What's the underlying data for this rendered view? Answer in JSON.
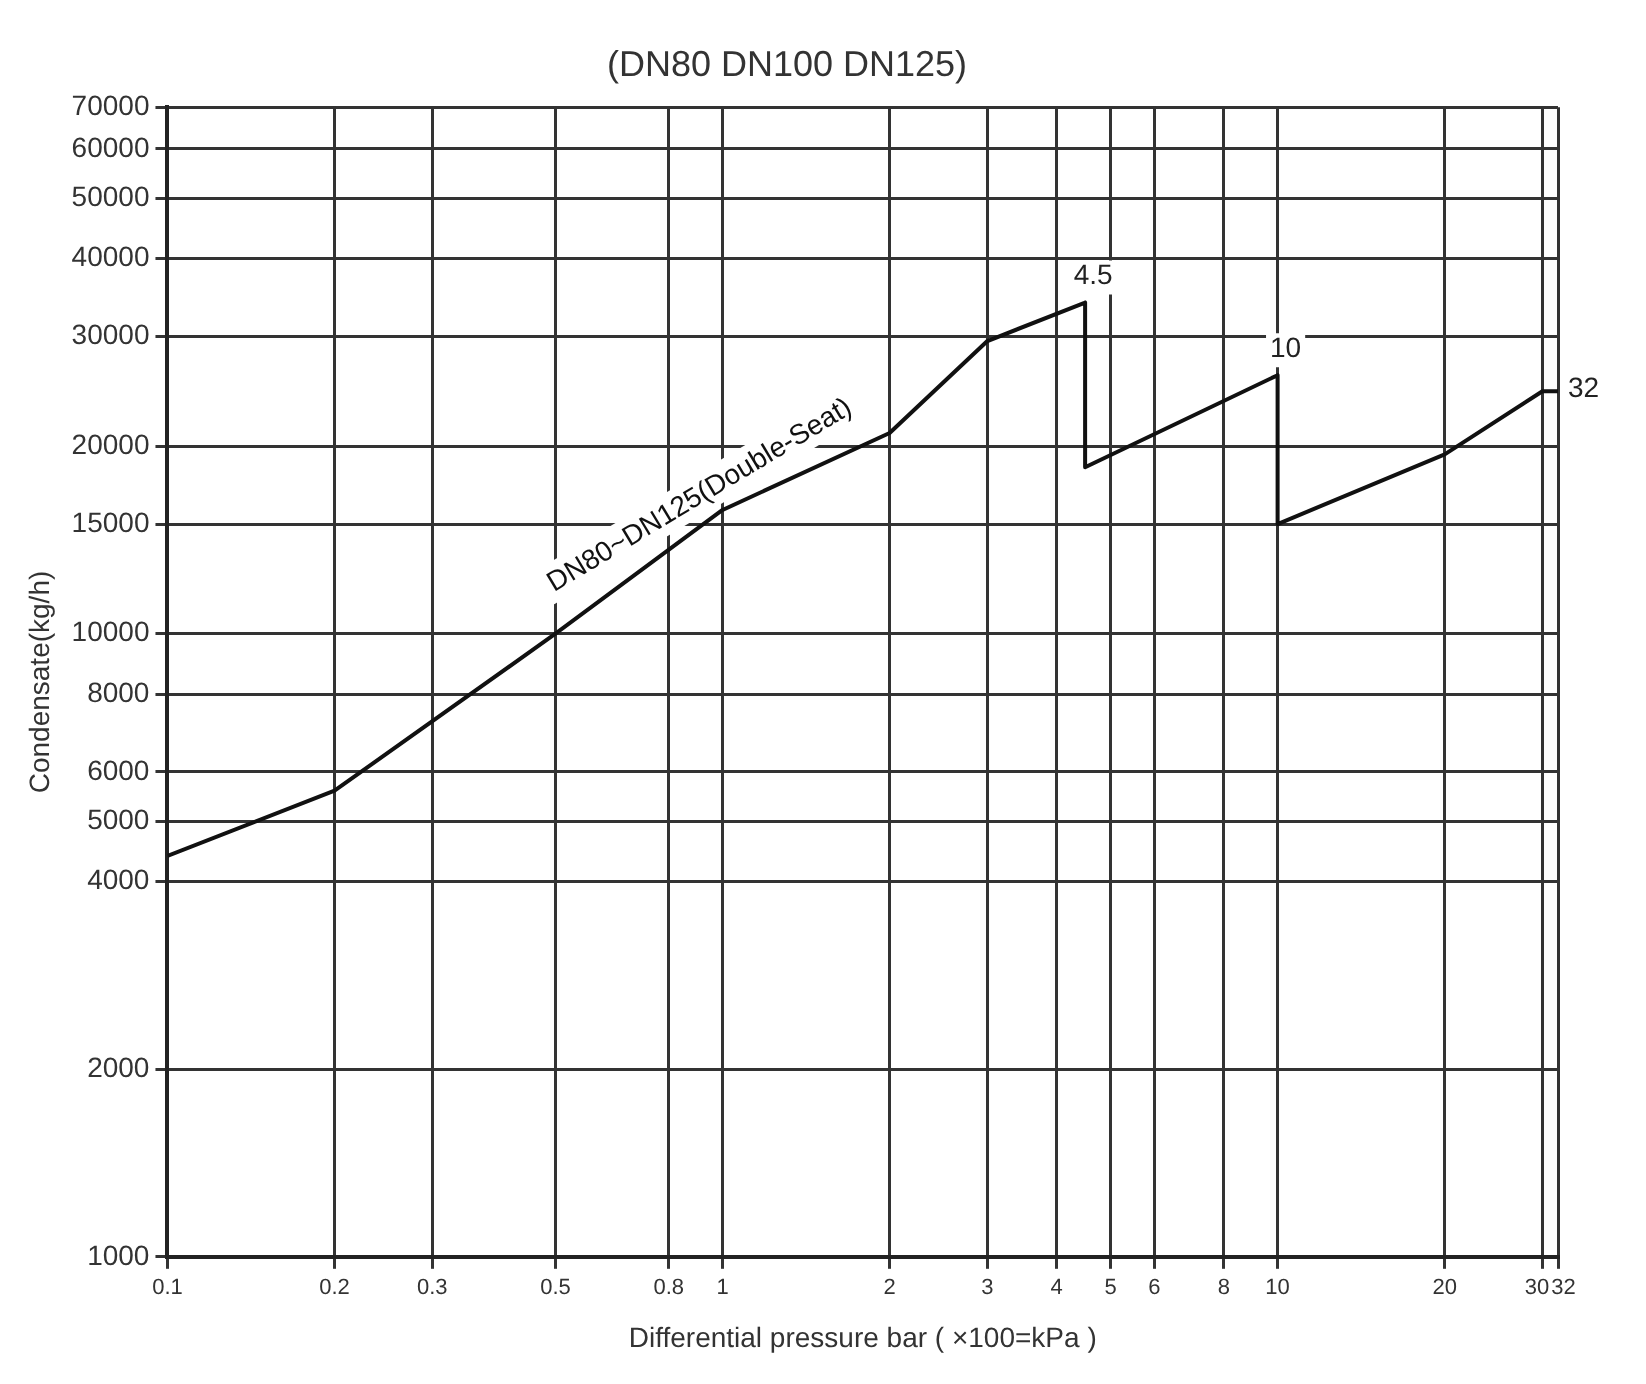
{
  "chart_data": {
    "type": "line",
    "title": "(DN80 DN100 DN125)",
    "xlabel": "Differential pressure bar ( ×100=kPa )",
    "ylabel": "Condensate(kg/h)",
    "series": [
      {
        "name": "DN80~DN125(Double-Seat)",
        "color": "#111111",
        "x": [
          0.1,
          0.2,
          0.5,
          1,
          2,
          3,
          4.5,
          4.5,
          10,
          10,
          20,
          30,
          32
        ],
        "values": [
          4400,
          5600,
          10000,
          15800,
          21000,
          29500,
          34000,
          18500,
          26000,
          15000,
          19400,
          24500,
          24500
        ]
      }
    ],
    "log": "xy",
    "xlim": [
      0.1,
      32
    ],
    "ylim": [
      1000,
      70000
    ],
    "xticks": [
      0.1,
      0.2,
      0.3,
      0.5,
      0.8,
      1,
      2,
      3,
      4,
      5,
      6,
      8,
      10,
      20,
      30,
      32
    ],
    "yticks": [
      1000,
      2000,
      4000,
      5000,
      6000,
      8000,
      10000,
      15000,
      20000,
      30000,
      40000,
      50000,
      60000,
      70000
    ],
    "grid": true,
    "legend": false,
    "marker": "none",
    "line_style": "solid",
    "annotations": [
      {
        "text": "4.5",
        "x": 4.5,
        "y": 34000
      },
      {
        "text": "10",
        "x": 10,
        "y": 26000
      },
      {
        "text": "32",
        "x": 32,
        "y": 24500
      }
    ]
  }
}
